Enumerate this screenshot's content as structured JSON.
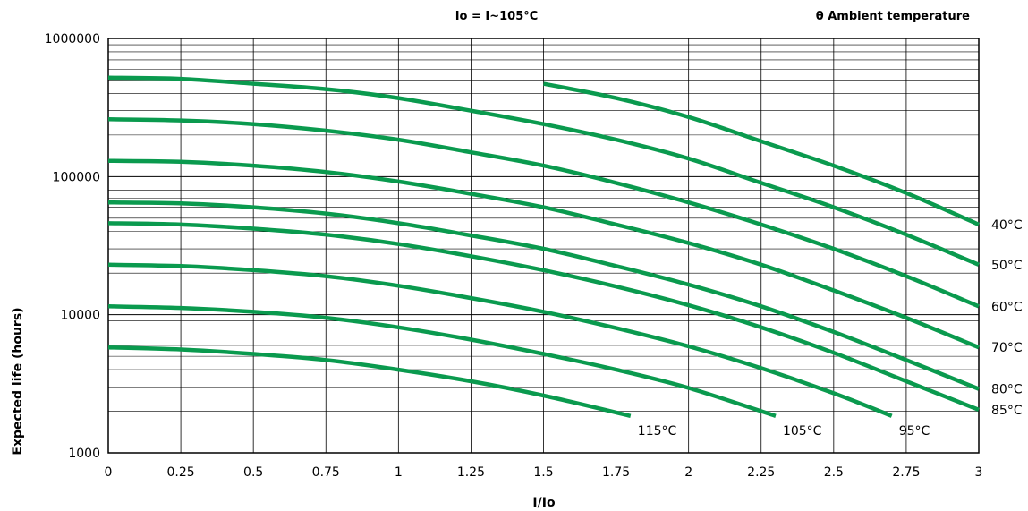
{
  "chart_data": {
    "type": "line",
    "title": "Io = I~105°C",
    "legend_title": "θ Ambient temperature",
    "xlabel": "I/Io",
    "ylabel": "Expected life (hours)",
    "xlim": [
      0,
      3
    ],
    "ylim": [
      1000,
      1000000
    ],
    "yscale": "log",
    "grid": true,
    "line_color": "#0a9a4e",
    "xticks": [
      {
        "value": 0,
        "label": "0"
      },
      {
        "value": 0.25,
        "label": "0.25"
      },
      {
        "value": 0.5,
        "label": "0.5"
      },
      {
        "value": 0.75,
        "label": "0.75"
      },
      {
        "value": 1,
        "label": "1"
      },
      {
        "value": 1.25,
        "label": "1.25"
      },
      {
        "value": 1.5,
        "label": "1.5"
      },
      {
        "value": 1.75,
        "label": "1.75"
      },
      {
        "value": 2,
        "label": "2"
      },
      {
        "value": 2.25,
        "label": "2.25"
      },
      {
        "value": 2.5,
        "label": "2.5"
      },
      {
        "value": 2.75,
        "label": "2.75"
      },
      {
        "value": 3,
        "label": "3"
      }
    ],
    "yticks": [
      {
        "value": 1000,
        "label": "1000"
      },
      {
        "value": 10000,
        "label": "10000"
      },
      {
        "value": 100000,
        "label": "100000"
      },
      {
        "value": 1000000,
        "label": "1000000"
      }
    ],
    "series": [
      {
        "name": "40°C",
        "x": [
          1.5,
          1.75,
          2,
          2.25,
          2.5,
          2.75,
          3
        ],
        "y": [
          470000,
          370000,
          270000,
          180000,
          120000,
          76000,
          45000
        ]
      },
      {
        "name": "50°C",
        "x": [
          0,
          0.25,
          0.5,
          0.75,
          1,
          1.25,
          1.5,
          1.75,
          2,
          2.25,
          2.5,
          2.75,
          3
        ],
        "y": [
          520000,
          510000,
          470000,
          430000,
          370000,
          300000,
          240000,
          185000,
          135000,
          90000,
          60000,
          38000,
          23000
        ]
      },
      {
        "name": "60°C",
        "x": [
          0,
          0.25,
          0.5,
          0.75,
          1,
          1.25,
          1.5,
          1.75,
          2,
          2.25,
          2.5,
          2.75,
          3
        ],
        "y": [
          260000,
          255000,
          240000,
          215000,
          185000,
          150000,
          120000,
          90000,
          65000,
          45000,
          30000,
          19000,
          11500
        ]
      },
      {
        "name": "70°C",
        "x": [
          0,
          0.25,
          0.5,
          0.75,
          1,
          1.25,
          1.5,
          1.75,
          2,
          2.25,
          2.5,
          2.75,
          3
        ],
        "y": [
          130000,
          128000,
          120000,
          108000,
          92000,
          75000,
          60000,
          45000,
          33000,
          23000,
          15000,
          9500,
          5800
        ]
      },
      {
        "name": "80°C",
        "x": [
          0,
          0.25,
          0.5,
          0.75,
          1,
          1.25,
          1.5,
          1.75,
          2,
          2.25,
          2.5,
          2.75,
          3
        ],
        "y": [
          65000,
          64000,
          60000,
          54000,
          46000,
          37500,
          30000,
          22500,
          16500,
          11500,
          7500,
          4700,
          2900
        ]
      },
      {
        "name": "85°C",
        "x": [
          0,
          0.25,
          0.5,
          0.75,
          1,
          1.25,
          1.5,
          1.75,
          2,
          2.25,
          2.5,
          2.75,
          3
        ],
        "y": [
          46000,
          45000,
          42000,
          38000,
          32500,
          26500,
          21000,
          16000,
          11700,
          8100,
          5300,
          3300,
          2050
        ]
      },
      {
        "name": "95°C",
        "x": [
          0,
          0.25,
          0.5,
          0.75,
          1,
          1.25,
          1.5,
          1.75,
          2,
          2.25,
          2.5,
          2.7
        ],
        "y": [
          23000,
          22500,
          21000,
          19000,
          16200,
          13200,
          10500,
          8000,
          5900,
          4100,
          2700,
          1850
        ]
      },
      {
        "name": "105°C",
        "x": [
          0,
          0.25,
          0.5,
          0.75,
          1,
          1.25,
          1.5,
          1.75,
          2,
          2.3
        ],
        "y": [
          11500,
          11200,
          10500,
          9500,
          8100,
          6600,
          5200,
          4000,
          2950,
          1850
        ]
      },
      {
        "name": "115°C",
        "x": [
          0,
          0.25,
          0.5,
          0.75,
          1,
          1.25,
          1.5,
          1.8
        ],
        "y": [
          5800,
          5600,
          5200,
          4700,
          4000,
          3300,
          2600,
          1850
        ]
      }
    ]
  }
}
